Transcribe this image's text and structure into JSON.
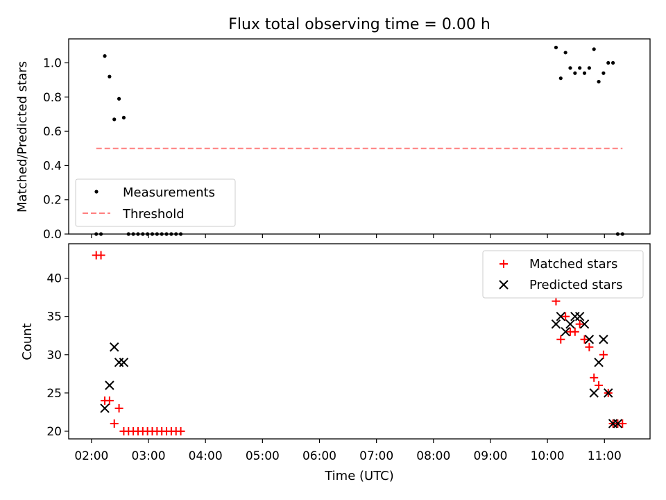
{
  "chart_data": [
    {
      "type": "scatter",
      "title": "Flux total observing time = 0.00 h",
      "ylabel": "Matched/Predicted stars",
      "xlabel": "",
      "xlim": [
        "01:36",
        "11:48"
      ],
      "ylim": [
        0,
        1.14
      ],
      "y_ticks": [
        0.0,
        0.2,
        0.4,
        0.6,
        0.8,
        1.0
      ],
      "legend": "lower-left",
      "series": [
        {
          "name": "Measurements",
          "marker": "dot",
          "color": "#000000",
          "points": [
            [
              "02:05",
              0
            ],
            [
              "02:10",
              0
            ],
            [
              "02:14",
              1.04
            ],
            [
              "02:19",
              0.92
            ],
            [
              "02:24",
              0.67
            ],
            [
              "02:29",
              0.79
            ],
            [
              "02:34",
              0.68
            ],
            [
              "02:39",
              0
            ],
            [
              "02:44",
              0
            ],
            [
              "02:49",
              0
            ],
            [
              "02:54",
              0
            ],
            [
              "02:59",
              0
            ],
            [
              "03:04",
              0
            ],
            [
              "03:09",
              0
            ],
            [
              "03:14",
              0
            ],
            [
              "03:19",
              0
            ],
            [
              "03:24",
              0
            ],
            [
              "03:29",
              0
            ],
            [
              "03:34",
              0
            ],
            [
              "10:09",
              1.09
            ],
            [
              "10:14",
              0.91
            ],
            [
              "10:19",
              1.06
            ],
            [
              "10:24",
              0.97
            ],
            [
              "10:29",
              0.94
            ],
            [
              "10:34",
              0.97
            ],
            [
              "10:39",
              0.94
            ],
            [
              "10:44",
              0.97
            ],
            [
              "10:49",
              1.08
            ],
            [
              "10:54",
              0.89
            ],
            [
              "10:59",
              0.94
            ],
            [
              "11:04",
              1.0
            ],
            [
              "11:09",
              1.0
            ],
            [
              "11:14",
              0
            ],
            [
              "11:19",
              0
            ]
          ]
        },
        {
          "name": "Threshold",
          "style": "dashed",
          "color": "#ff7f7f",
          "points": [
            [
              "02:05",
              0.5
            ],
            [
              "11:19",
              0.5
            ]
          ]
        }
      ]
    },
    {
      "type": "scatter",
      "title": "",
      "xlabel": "Time (UTC)",
      "ylabel": "Count",
      "xlim": [
        "01:36",
        "11:48"
      ],
      "ylim": [
        19,
        44.5
      ],
      "x_ticks": [
        "02:00",
        "03:00",
        "04:00",
        "05:00",
        "06:00",
        "07:00",
        "08:00",
        "09:00",
        "10:00",
        "11:00"
      ],
      "y_ticks": [
        20,
        25,
        30,
        35,
        40
      ],
      "legend": "top-right",
      "series": [
        {
          "name": "Matched stars",
          "marker": "plus",
          "color": "#ff0000",
          "points": [
            [
              "02:05",
              43
            ],
            [
              "02:10",
              43
            ],
            [
              "02:14",
              24
            ],
            [
              "02:19",
              24
            ],
            [
              "02:24",
              21
            ],
            [
              "02:29",
              23
            ],
            [
              "02:34",
              20
            ],
            [
              "02:39",
              20
            ],
            [
              "02:44",
              20
            ],
            [
              "02:49",
              20
            ],
            [
              "02:54",
              20
            ],
            [
              "02:59",
              20
            ],
            [
              "03:04",
              20
            ],
            [
              "03:09",
              20
            ],
            [
              "03:14",
              20
            ],
            [
              "03:19",
              20
            ],
            [
              "03:24",
              20
            ],
            [
              "03:29",
              20
            ],
            [
              "03:34",
              20
            ],
            [
              "10:09",
              37
            ],
            [
              "10:14",
              32
            ],
            [
              "10:19",
              35
            ],
            [
              "10:24",
              33
            ],
            [
              "10:29",
              33
            ],
            [
              "10:34",
              34
            ],
            [
              "10:39",
              32
            ],
            [
              "10:44",
              31
            ],
            [
              "10:49",
              27
            ],
            [
              "10:54",
              26
            ],
            [
              "10:59",
              30
            ],
            [
              "11:04",
              25
            ],
            [
              "11:09",
              21
            ],
            [
              "11:14",
              21
            ],
            [
              "11:19",
              21
            ]
          ]
        },
        {
          "name": "Predicted stars",
          "marker": "x",
          "color": "#000000",
          "points": [
            [
              "02:14",
              23
            ],
            [
              "02:19",
              26
            ],
            [
              "02:24",
              31
            ],
            [
              "02:29",
              29
            ],
            [
              "02:34",
              29
            ],
            [
              "10:09",
              34
            ],
            [
              "10:14",
              35
            ],
            [
              "10:19",
              33
            ],
            [
              "10:24",
              34
            ],
            [
              "10:29",
              35
            ],
            [
              "10:34",
              35
            ],
            [
              "10:39",
              34
            ],
            [
              "10:44",
              32
            ],
            [
              "10:49",
              25
            ],
            [
              "10:54",
              29
            ],
            [
              "10:59",
              32
            ],
            [
              "11:04",
              25
            ],
            [
              "11:09",
              21
            ],
            [
              "11:14",
              21
            ]
          ]
        }
      ]
    }
  ]
}
